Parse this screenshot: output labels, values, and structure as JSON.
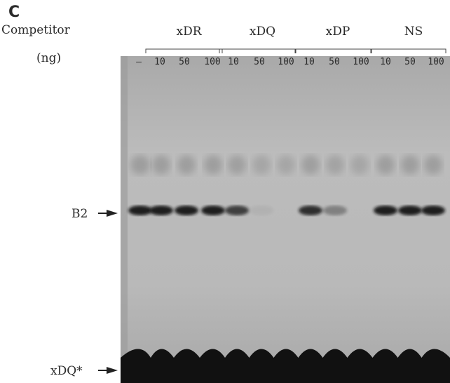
{
  "figure": {
    "panel_label": "C",
    "competitor_label": "Competitor",
    "unit_label": "(ng)",
    "control_lane": "—",
    "groups": [
      {
        "name": "xDR",
        "lanes": [
          "10",
          "50",
          "100"
        ]
      },
      {
        "name": "xDQ",
        "lanes": [
          "10",
          "50",
          "100"
        ]
      },
      {
        "name": "xDP",
        "lanes": [
          "10",
          "50",
          "100"
        ]
      },
      {
        "name": "NS",
        "lanes": [
          "10",
          "50",
          "100"
        ]
      }
    ],
    "markers": [
      "B2",
      "xDQ*"
    ]
  }
}
